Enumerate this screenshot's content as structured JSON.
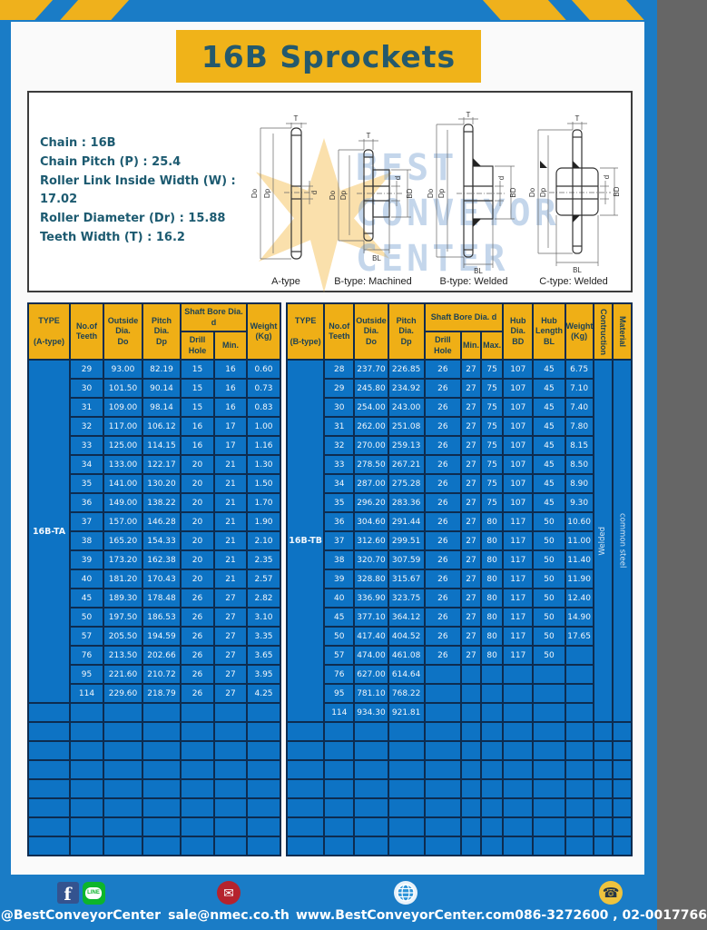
{
  "page": {
    "title": "16B Sprockets"
  },
  "colors": {
    "frame_blue": "#1a7cc6",
    "table_blue": "#0d73c4",
    "header_yellow": "#efaf16",
    "banner_yellow": "#f0b319",
    "grid_navy": "#0d2c50",
    "title_teal": "#24596d"
  },
  "spec": {
    "lines": [
      "Chain : 16B",
      "Chain Pitch (P) : 25.4",
      "Roller Link Inside Width (W) : 17.02",
      "Roller Diameter (Dr) : 15.88",
      "Teeth Width (T) : 16.2"
    ]
  },
  "drawings": {
    "dims": {
      "t": "T",
      "do": "Do",
      "dp": "Dp",
      "d": "d",
      "bd": "BD",
      "bl": "BL"
    },
    "captions": [
      "A-type",
      "B-type: Machined",
      "B-type: Welded",
      "C-type: Welded"
    ],
    "watermark": {
      "line1": "BEST",
      "line2": "CONVEYOR",
      "line3": "CENTER"
    }
  },
  "left_table": {
    "header": {
      "type": "TYPE\n\n(A-type)",
      "teeth": "No.of\nTeeth",
      "outside": "Outside\nDia.\nDo",
      "pitch": "Pitch Dia.\nDp",
      "shaft_bore": "Shaft Bore Dia. d",
      "drill": "Drill Hole",
      "min": "Min.",
      "weight": "Weight\n(Kg)"
    },
    "type_label": "16B-TA",
    "rows": [
      [
        "29",
        "93.00",
        "82.19",
        "15",
        "16",
        "0.60"
      ],
      [
        "30",
        "101.50",
        "90.14",
        "15",
        "16",
        "0.73"
      ],
      [
        "31",
        "109.00",
        "98.14",
        "15",
        "16",
        "0.83"
      ],
      [
        "32",
        "117.00",
        "106.12",
        "16",
        "17",
        "1.00"
      ],
      [
        "33",
        "125.00",
        "114.15",
        "16",
        "17",
        "1.16"
      ],
      [
        "34",
        "133.00",
        "122.17",
        "20",
        "21",
        "1.30"
      ],
      [
        "35",
        "141.00",
        "130.20",
        "20",
        "21",
        "1.50"
      ],
      [
        "36",
        "149.00",
        "138.22",
        "20",
        "21",
        "1.70"
      ],
      [
        "37",
        "157.00",
        "146.28",
        "20",
        "21",
        "1.90"
      ],
      [
        "38",
        "165.20",
        "154.33",
        "20",
        "21",
        "2.10"
      ],
      [
        "39",
        "173.20",
        "162.38",
        "20",
        "21",
        "2.35"
      ],
      [
        "40",
        "181.20",
        "170.43",
        "20",
        "21",
        "2.57"
      ],
      [
        "45",
        "189.30",
        "178.48",
        "26",
        "27",
        "2.82"
      ],
      [
        "50",
        "197.50",
        "186.53",
        "26",
        "27",
        "3.10"
      ],
      [
        "57",
        "205.50",
        "194.59",
        "26",
        "27",
        "3.35"
      ],
      [
        "76",
        "213.50",
        "202.66",
        "26",
        "27",
        "3.65"
      ],
      [
        "95",
        "221.60",
        "210.72",
        "26",
        "27",
        "3.95"
      ],
      [
        "114",
        "229.60",
        "218.79",
        "26",
        "27",
        "4.25"
      ]
    ],
    "empty_rows": 8
  },
  "right_table": {
    "header": {
      "type": "TYPE\n\n(B-type)",
      "teeth": "No.of\nTeeth",
      "outside": "Outside\nDia.\nDo",
      "pitch": "Pitch Dia.\nDp",
      "shaft_bore": "Shaft Bore Dia. d",
      "drill": "Drill Hole",
      "min": "Min.",
      "max": "Max.",
      "hub_dia": "Hub Dia.\nBD",
      "hub_len": "Hub\nLength\nBL",
      "weight": "Weight\n(Kg)",
      "construction": "Contruction",
      "material": "Material"
    },
    "type_label": "16B-TB",
    "construction_value": "Welded",
    "material_value": "common steel",
    "rows": [
      [
        "28",
        "237.70",
        "226.85",
        "26",
        "27",
        "75",
        "107",
        "45",
        "6.75"
      ],
      [
        "29",
        "245.80",
        "234.92",
        "26",
        "27",
        "75",
        "107",
        "45",
        "7.10"
      ],
      [
        "30",
        "254.00",
        "243.00",
        "26",
        "27",
        "75",
        "107",
        "45",
        "7.40"
      ],
      [
        "31",
        "262.00",
        "251.08",
        "26",
        "27",
        "75",
        "107",
        "45",
        "7.80"
      ],
      [
        "32",
        "270.00",
        "259.13",
        "26",
        "27",
        "75",
        "107",
        "45",
        "8.15"
      ],
      [
        "33",
        "278.50",
        "267.21",
        "26",
        "27",
        "75",
        "107",
        "45",
        "8.50"
      ],
      [
        "34",
        "287.00",
        "275.28",
        "26",
        "27",
        "75",
        "107",
        "45",
        "8.90"
      ],
      [
        "35",
        "296.20",
        "283.36",
        "26",
        "27",
        "75",
        "107",
        "45",
        "9.30"
      ],
      [
        "36",
        "304.60",
        "291.44",
        "26",
        "27",
        "80",
        "117",
        "50",
        "10.60"
      ],
      [
        "37",
        "312.60",
        "299.51",
        "26",
        "27",
        "80",
        "117",
        "50",
        "11.00"
      ],
      [
        "38",
        "320.70",
        "307.59",
        "26",
        "27",
        "80",
        "117",
        "50",
        "11.40"
      ],
      [
        "39",
        "328.80",
        "315.67",
        "26",
        "27",
        "80",
        "117",
        "50",
        "11.90"
      ],
      [
        "40",
        "336.90",
        "323.75",
        "26",
        "27",
        "80",
        "117",
        "50",
        "12.40"
      ],
      [
        "45",
        "377.10",
        "364.12",
        "26",
        "27",
        "80",
        "117",
        "50",
        "14.90"
      ],
      [
        "50",
        "417.40",
        "404.52",
        "26",
        "27",
        "80",
        "117",
        "50",
        "17.65"
      ],
      [
        "57",
        "474.00",
        "461.08",
        "26",
        "27",
        "80",
        "117",
        "50",
        ""
      ],
      [
        "76",
        "627.00",
        "614.64",
        "",
        "",
        "",
        "",
        "",
        ""
      ],
      [
        "95",
        "781.10",
        "768.22",
        "",
        "",
        "",
        "",
        "",
        ""
      ],
      [
        "114",
        "934.30",
        "921.81",
        "",
        "",
        "",
        "",
        "",
        ""
      ]
    ],
    "empty_rows": 7
  },
  "footer": {
    "contacts": [
      {
        "text": "@BestConveyorCenter"
      },
      {
        "text": "sale@nmec.co.th"
      },
      {
        "text": "www.BestConveyorCenter.com"
      },
      {
        "text": "086-3272600 , 02-0017766"
      }
    ],
    "mail_glyph": "✉",
    "phone_glyph": "☎",
    "fb_glyph": "f",
    "line_glyph": "LINE"
  }
}
